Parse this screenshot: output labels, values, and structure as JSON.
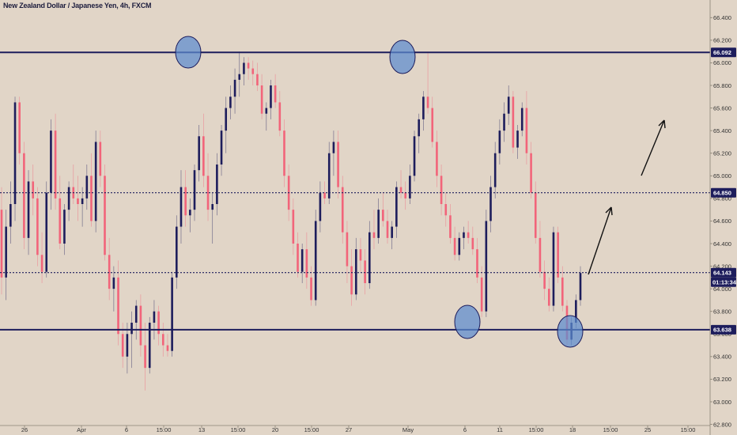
{
  "chart_data": {
    "type": "candlestick",
    "title": "New Zealand Dollar / Japanese Yen, 4h, FXCM",
    "x_ticks": [
      "26",
      "Apr",
      "6",
      "15:00",
      "13",
      "15:00",
      "20",
      "15:00",
      "27",
      "May",
      "6",
      "11",
      "15:00",
      "18",
      "15:00",
      "25",
      "15:00"
    ],
    "y_ticks": [
      "66.400",
      "66.200",
      "66.000",
      "65.800",
      "65.600",
      "65.400",
      "65.200",
      "65.000",
      "64.800",
      "64.600",
      "64.400",
      "64.200",
      "64.000",
      "63.800",
      "63.600",
      "63.400",
      "63.200",
      "63.000",
      "62.800"
    ],
    "ylim": [
      62.79,
      66.5
    ],
    "levels": [
      {
        "name": "resistance",
        "value": 66.092,
        "label": "66.092",
        "style": "solid"
      },
      {
        "name": "middle",
        "value": 64.85,
        "label": "64.850",
        "style": "dotted"
      },
      {
        "name": "current",
        "value": 64.143,
        "label": "64.143",
        "style": "dotted"
      },
      {
        "name": "support",
        "value": 63.638,
        "label": "63.638",
        "style": "solid"
      }
    ],
    "countdown": "01:13:34",
    "colors": {
      "background": "#e1d5c7",
      "up": "#1d1d5c",
      "down": "#f2647a",
      "line": "#1d1d5c",
      "circle": "#5b8cd0"
    },
    "ohlc": [
      [
        64.7,
        64.9,
        63.95,
        64.1
      ],
      [
        64.1,
        64.7,
        63.9,
        64.55
      ],
      [
        64.55,
        64.95,
        64.4,
        64.75
      ],
      [
        64.75,
        65.7,
        64.6,
        65.65
      ],
      [
        65.65,
        65.7,
        65.1,
        65.2
      ],
      [
        65.2,
        65.3,
        64.35,
        64.45
      ],
      [
        64.45,
        65.05,
        64.3,
        64.95
      ],
      [
        64.95,
        65.1,
        64.65,
        64.8
      ],
      [
        64.8,
        64.9,
        64.2,
        64.3
      ],
      [
        64.3,
        64.5,
        64.05,
        64.15
      ],
      [
        64.15,
        64.95,
        64.1,
        64.85
      ],
      [
        64.85,
        65.5,
        64.7,
        65.4
      ],
      [
        65.4,
        65.55,
        64.7,
        64.8
      ],
      [
        64.8,
        65.0,
        64.35,
        64.4
      ],
      [
        64.4,
        64.75,
        64.3,
        64.7
      ],
      [
        64.7,
        64.95,
        64.6,
        64.9
      ],
      [
        64.9,
        65.1,
        64.75,
        64.8
      ],
      [
        64.8,
        65.0,
        64.6,
        64.75
      ],
      [
        64.75,
        64.9,
        64.55,
        64.8
      ],
      [
        64.8,
        65.1,
        64.7,
        65.0
      ],
      [
        65.0,
        65.2,
        64.55,
        64.6
      ],
      [
        64.6,
        65.4,
        64.5,
        65.3
      ],
      [
        65.3,
        65.4,
        64.9,
        65.0
      ],
      [
        65.0,
        65.1,
        64.25,
        64.3
      ],
      [
        64.3,
        64.45,
        63.9,
        64.0
      ],
      [
        64.0,
        64.2,
        63.8,
        64.1
      ],
      [
        64.1,
        64.25,
        63.5,
        63.6
      ],
      [
        63.6,
        63.7,
        63.3,
        63.4
      ],
      [
        63.4,
        63.7,
        63.25,
        63.6
      ],
      [
        63.6,
        63.8,
        63.3,
        63.7
      ],
      [
        63.7,
        63.9,
        63.55,
        63.85
      ],
      [
        63.85,
        63.95,
        63.4,
        63.5
      ],
      [
        63.5,
        63.7,
        63.1,
        63.3
      ],
      [
        63.3,
        63.75,
        63.25,
        63.7
      ],
      [
        63.7,
        63.9,
        63.55,
        63.8
      ],
      [
        63.8,
        63.85,
        63.5,
        63.6
      ],
      [
        63.6,
        63.7,
        63.4,
        63.5
      ],
      [
        63.5,
        63.6,
        63.4,
        63.45
      ],
      [
        63.45,
        64.15,
        63.4,
        64.1
      ],
      [
        64.1,
        64.65,
        64.0,
        64.55
      ],
      [
        64.55,
        65.05,
        64.4,
        64.9
      ],
      [
        64.9,
        65.05,
        64.55,
        64.65
      ],
      [
        64.65,
        64.8,
        64.5,
        64.7
      ],
      [
        64.7,
        65.1,
        64.6,
        65.05
      ],
      [
        65.05,
        65.45,
        64.95,
        65.35
      ],
      [
        65.35,
        65.55,
        64.9,
        65.0
      ],
      [
        65.0,
        65.2,
        64.6,
        64.7
      ],
      [
        64.7,
        64.85,
        64.4,
        64.75
      ],
      [
        64.75,
        65.2,
        64.65,
        65.1
      ],
      [
        65.1,
        65.45,
        65.0,
        65.4
      ],
      [
        65.4,
        65.7,
        65.2,
        65.6
      ],
      [
        65.6,
        65.8,
        65.5,
        65.7
      ],
      [
        65.7,
        65.95,
        65.55,
        65.85
      ],
      [
        65.85,
        66.1,
        65.7,
        65.9
      ],
      [
        65.9,
        66.05,
        65.8,
        66.0
      ],
      [
        66.0,
        66.05,
        65.85,
        65.95
      ],
      [
        65.95,
        66.02,
        65.8,
        65.9
      ],
      [
        65.9,
        66.0,
        65.75,
        65.8
      ],
      [
        65.8,
        65.9,
        65.5,
        65.55
      ],
      [
        65.55,
        65.65,
        65.4,
        65.6
      ],
      [
        65.6,
        65.85,
        65.5,
        65.8
      ],
      [
        65.8,
        65.9,
        65.6,
        65.65
      ],
      [
        65.65,
        65.75,
        65.35,
        65.4
      ],
      [
        65.4,
        65.5,
        64.9,
        65.0
      ],
      [
        65.0,
        65.1,
        64.6,
        64.7
      ],
      [
        64.7,
        64.8,
        64.3,
        64.4
      ],
      [
        64.4,
        64.5,
        64.1,
        64.15
      ],
      [
        64.15,
        64.4,
        64.05,
        64.35
      ],
      [
        64.35,
        64.5,
        64.0,
        64.1
      ],
      [
        64.1,
        64.2,
        63.85,
        63.9
      ],
      [
        63.9,
        64.7,
        63.85,
        64.6
      ],
      [
        64.6,
        64.95,
        64.5,
        64.85
      ],
      [
        64.85,
        64.95,
        64.75,
        64.8
      ],
      [
        64.8,
        65.3,
        64.75,
        65.2
      ],
      [
        65.2,
        65.4,
        65.0,
        65.3
      ],
      [
        65.3,
        65.4,
        64.8,
        64.9
      ],
      [
        64.9,
        65.0,
        64.4,
        64.5
      ],
      [
        64.5,
        64.6,
        64.05,
        64.2
      ],
      [
        64.2,
        64.35,
        63.85,
        63.95
      ],
      [
        63.95,
        64.45,
        63.9,
        64.35
      ],
      [
        64.35,
        64.45,
        64.15,
        64.25
      ],
      [
        64.25,
        64.35,
        63.95,
        64.05
      ],
      [
        64.05,
        64.6,
        64.0,
        64.5
      ],
      [
        64.5,
        64.7,
        64.35,
        64.45
      ],
      [
        64.45,
        64.8,
        64.4,
        64.7
      ],
      [
        64.7,
        64.85,
        64.55,
        64.6
      ],
      [
        64.6,
        64.7,
        64.4,
        64.45
      ],
      [
        64.45,
        64.6,
        64.35,
        64.55
      ],
      [
        64.55,
        64.95,
        64.45,
        64.9
      ],
      [
        64.9,
        65.05,
        64.8,
        64.85
      ],
      [
        64.85,
        64.95,
        64.7,
        64.8
      ],
      [
        64.8,
        65.1,
        64.75,
        65.0
      ],
      [
        65.0,
        65.4,
        64.95,
        65.35
      ],
      [
        65.35,
        65.55,
        65.2,
        65.5
      ],
      [
        65.5,
        65.75,
        65.4,
        65.7
      ],
      [
        65.7,
        66.1,
        65.55,
        65.6
      ],
      [
        65.6,
        65.7,
        65.25,
        65.3
      ],
      [
        65.3,
        65.4,
        64.9,
        65.0
      ],
      [
        65.0,
        65.1,
        64.65,
        64.75
      ],
      [
        64.75,
        64.85,
        64.55,
        64.65
      ],
      [
        64.65,
        64.75,
        64.4,
        64.45
      ],
      [
        64.45,
        64.55,
        64.25,
        64.3
      ],
      [
        64.3,
        64.5,
        64.25,
        64.45
      ],
      [
        64.45,
        64.55,
        64.35,
        64.5
      ],
      [
        64.5,
        64.6,
        64.4,
        64.45
      ],
      [
        64.45,
        64.55,
        64.3,
        64.35
      ],
      [
        64.35,
        64.45,
        64.05,
        64.1
      ],
      [
        64.1,
        64.2,
        63.75,
        63.8
      ],
      [
        63.8,
        64.7,
        63.75,
        64.6
      ],
      [
        64.6,
        65.0,
        64.5,
        64.9
      ],
      [
        64.9,
        65.3,
        64.8,
        65.2
      ],
      [
        65.2,
        65.5,
        65.1,
        65.4
      ],
      [
        65.4,
        65.65,
        65.3,
        65.55
      ],
      [
        65.55,
        65.8,
        65.45,
        65.7
      ],
      [
        65.7,
        65.75,
        65.2,
        65.25
      ],
      [
        65.25,
        65.45,
        65.15,
        65.4
      ],
      [
        65.4,
        65.65,
        65.35,
        65.6
      ],
      [
        65.6,
        65.75,
        65.1,
        65.2
      ],
      [
        65.2,
        65.3,
        64.8,
        64.85
      ],
      [
        64.85,
        64.95,
        64.4,
        64.45
      ],
      [
        64.45,
        64.6,
        64.1,
        64.15
      ],
      [
        64.15,
        64.25,
        63.9,
        64.0
      ],
      [
        64.0,
        64.1,
        63.8,
        63.85
      ],
      [
        63.85,
        64.55,
        63.8,
        64.5
      ],
      [
        64.5,
        64.55,
        64.05,
        64.1
      ],
      [
        64.1,
        64.2,
        63.8,
        63.85
      ],
      [
        63.85,
        63.9,
        63.5,
        63.55
      ],
      [
        63.55,
        63.75,
        63.5,
        63.7
      ],
      [
        63.7,
        63.95,
        63.65,
        63.9
      ],
      [
        63.9,
        64.2,
        63.85,
        64.14
      ]
    ]
  }
}
